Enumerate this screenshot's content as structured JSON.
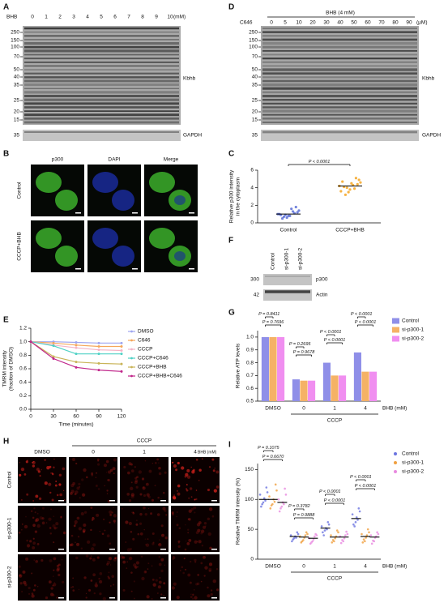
{
  "figure": {
    "panel_labels": [
      "A",
      "B",
      "C",
      "D",
      "E",
      "F",
      "G",
      "H",
      "I"
    ],
    "A": {
      "treatment": "BHB",
      "lanes": [
        "0",
        "1",
        "2",
        "3",
        "4",
        "5",
        "6",
        "7",
        "8",
        "9",
        "10"
      ],
      "unit": "(mM)",
      "markers": [
        "250",
        "150",
        "100",
        "70",
        "50",
        "40",
        "35",
        "25",
        "20",
        "15"
      ],
      "loading_marker": "35",
      "target": "Kbhb",
      "loading": "GAPDH"
    },
    "D": {
      "treatment": "BHB (4 mM)",
      "inhibitor": "C646",
      "lanes": [
        "0",
        "5",
        "10",
        "20",
        "30",
        "40",
        "50",
        "60",
        "70",
        "80",
        "90"
      ],
      "unit": "(μM)",
      "markers": [
        "250",
        "150",
        "100",
        "70",
        "50",
        "40",
        "35",
        "25",
        "20",
        "15"
      ],
      "loading_marker": "35",
      "target": "Kbhb",
      "loading": "GAPDH"
    },
    "B": {
      "columns": [
        "p300",
        "DAPI",
        "Merge"
      ],
      "rows": [
        "Control",
        "CCCP+BHB"
      ]
    },
    "F": {
      "lanes": [
        "Control",
        "si-p300-1",
        "si-p300-2"
      ],
      "markers": [
        "300",
        "42"
      ],
      "targets": [
        "p300",
        "Actin"
      ]
    },
    "H": {
      "columns": [
        "DMSO",
        "0",
        "1",
        "4"
      ],
      "group": "CCCP",
      "unit": "BHB (mM)",
      "rows": [
        "Control",
        "si-p300-1",
        "si-p300-2"
      ]
    }
  },
  "chart_data": [
    {
      "type": "strip",
      "ylabel": [
        "Relative p300 intensity",
        "in the cytoplasm"
      ],
      "categories": [
        "Control",
        "CCCP+BHB"
      ],
      "colors": [
        "#5b6fd6",
        "#f5a623"
      ],
      "ylim": [
        0,
        6
      ],
      "yticks": [
        0,
        2,
        4,
        6
      ],
      "values": [
        [
          1.0,
          0.8,
          1.4,
          0.6,
          1.2,
          0.9,
          1.8,
          0.7,
          1.1,
          0.5,
          1.3,
          0.9,
          1.6,
          1.0,
          0.8
        ],
        [
          4.2,
          3.8,
          4.6,
          3.5,
          4.9,
          4.0,
          4.4,
          3.2,
          5.1,
          4.1,
          3.9,
          4.7,
          4.3,
          3.6,
          4.5
        ]
      ],
      "means": [
        1.0,
        4.2
      ],
      "annotations": [
        "P < 0.0001"
      ]
    },
    {
      "type": "line",
      "ylabel": [
        "TMRM intensity",
        "(fraction of DMSO)"
      ],
      "xlabel": "Time (minutes)",
      "x": [
        0,
        30,
        60,
        90,
        120
      ],
      "xlim": [
        0,
        120
      ],
      "xticks": [
        0,
        30,
        60,
        90,
        120
      ],
      "ylim": [
        0,
        1.2
      ],
      "yticks": [
        {
          "value": 0,
          "label": "0.0"
        },
        0.2,
        0.4,
        0.6,
        0.8,
        {
          "value": 1,
          "label": "1.0"
        },
        1.2
      ],
      "legend": "right",
      "series": [
        {
          "name": "DMSO",
          "color": "#9fa6f0",
          "values": [
            1.0,
            1.0,
            0.99,
            0.98,
            0.98
          ]
        },
        {
          "name": "C646",
          "color": "#f5a65b",
          "values": [
            1.0,
            0.98,
            0.95,
            0.93,
            0.93
          ]
        },
        {
          "name": "CCCP",
          "color": "#f4b3c6",
          "values": [
            1.0,
            0.95,
            0.91,
            0.88,
            0.87
          ]
        },
        {
          "name": "CCCP+C646",
          "color": "#4fd1c5",
          "values": [
            1.0,
            0.94,
            0.82,
            0.82,
            0.82
          ]
        },
        {
          "name": "CCCP+BHB",
          "color": "#c9b458",
          "values": [
            1.0,
            0.78,
            0.7,
            0.68,
            0.67
          ]
        },
        {
          "name": "CCCP+BHB+C646",
          "color": "#c0268a",
          "values": [
            1.0,
            0.75,
            0.62,
            0.58,
            0.56
          ]
        }
      ]
    },
    {
      "type": "bar",
      "ylabel": "Relative ATP levels",
      "categories": [
        "DMSO",
        "0",
        "1",
        "4"
      ],
      "group_label": "CCCP",
      "x_unit": "BHB (mM)",
      "ylim": [
        0.5,
        1.05
      ],
      "yticks": [
        0.5,
        0.6,
        0.7,
        0.8,
        0.9,
        {
          "value": 1,
          "label": "1.0"
        }
      ],
      "legend": "upper right",
      "series": [
        {
          "name": "Control",
          "color": "#8f8fe8",
          "values": [
            1.0,
            0.67,
            0.8,
            0.88
          ]
        },
        {
          "name": "si-p300-1",
          "color": "#f5b266",
          "values": [
            1.0,
            0.66,
            0.7,
            0.73
          ]
        },
        {
          "name": "si-p300-2",
          "color": "#f08ef0",
          "values": [
            1.0,
            0.66,
            0.7,
            0.73
          ]
        }
      ],
      "annotations": [
        "P = 0.8411",
        "P = 0.7696",
        "P = 0.2695",
        "P = 0.9678",
        "P < 0.0001",
        "P < 0.0001",
        "P < 0.0001",
        "P < 0.0001"
      ]
    },
    {
      "type": "groupstrip",
      "ylabel": "Relative TMRM intensity (%)",
      "categories": [
        "DMSO",
        "0",
        "1",
        "4"
      ],
      "group_label": "CCCP",
      "x_unit": "BHB (mM)",
      "ylim": [
        0,
        160
      ],
      "yticks": [
        0,
        50,
        100,
        150
      ],
      "legend": "upper right",
      "series": [
        {
          "name": "Control",
          "color": "#6b74e0",
          "values": [
            [
              108,
              95,
              120,
              88,
              102,
              112,
              92,
              98
            ],
            [
              40,
              35,
              45,
              30,
              38,
              42,
              33,
              36
            ],
            [
              55,
              48,
              62,
              45,
              52,
              58,
              40,
              50
            ],
            [
              75,
              62,
              85,
              58,
              70,
              80,
              55,
              66
            ]
          ],
          "means": [
            100,
            38,
            52,
            68
          ]
        },
        {
          "name": "si-p300-1",
          "color": "#f0a040",
          "values": [
            [
              105,
              92,
              125,
              85,
              100,
              115,
              90,
              96
            ],
            [
              38,
              32,
              45,
              28,
              36,
              42,
              30,
              40
            ],
            [
              40,
              30,
              48,
              28,
              35,
              45,
              32,
              38
            ],
            [
              42,
              30,
              50,
              28,
              36,
              45,
              33,
              40
            ]
          ],
          "means": [
            100,
            37,
            37,
            38
          ]
        },
        {
          "name": "si-p300-2",
          "color": "#e88ae0",
          "values": [
            [
              100,
              88,
              118,
              80,
              95,
              108,
              85,
              92
            ],
            [
              35,
              30,
              42,
              26,
              33,
              40,
              28,
              38
            ],
            [
              38,
              30,
              46,
              27,
              35,
              42,
              32,
              40
            ],
            [
              40,
              30,
              45,
              26,
              36,
              42,
              31,
              38
            ]
          ],
          "means": [
            95,
            35,
            37,
            37
          ]
        }
      ],
      "annotations": [
        "P = 0.1075",
        "P = 0.6670",
        "P = 0.3782",
        "P = 0.9888",
        "P < 0.0001",
        "P < 0.0001",
        "P < 0.0001",
        "P < 0.0001"
      ]
    }
  ]
}
